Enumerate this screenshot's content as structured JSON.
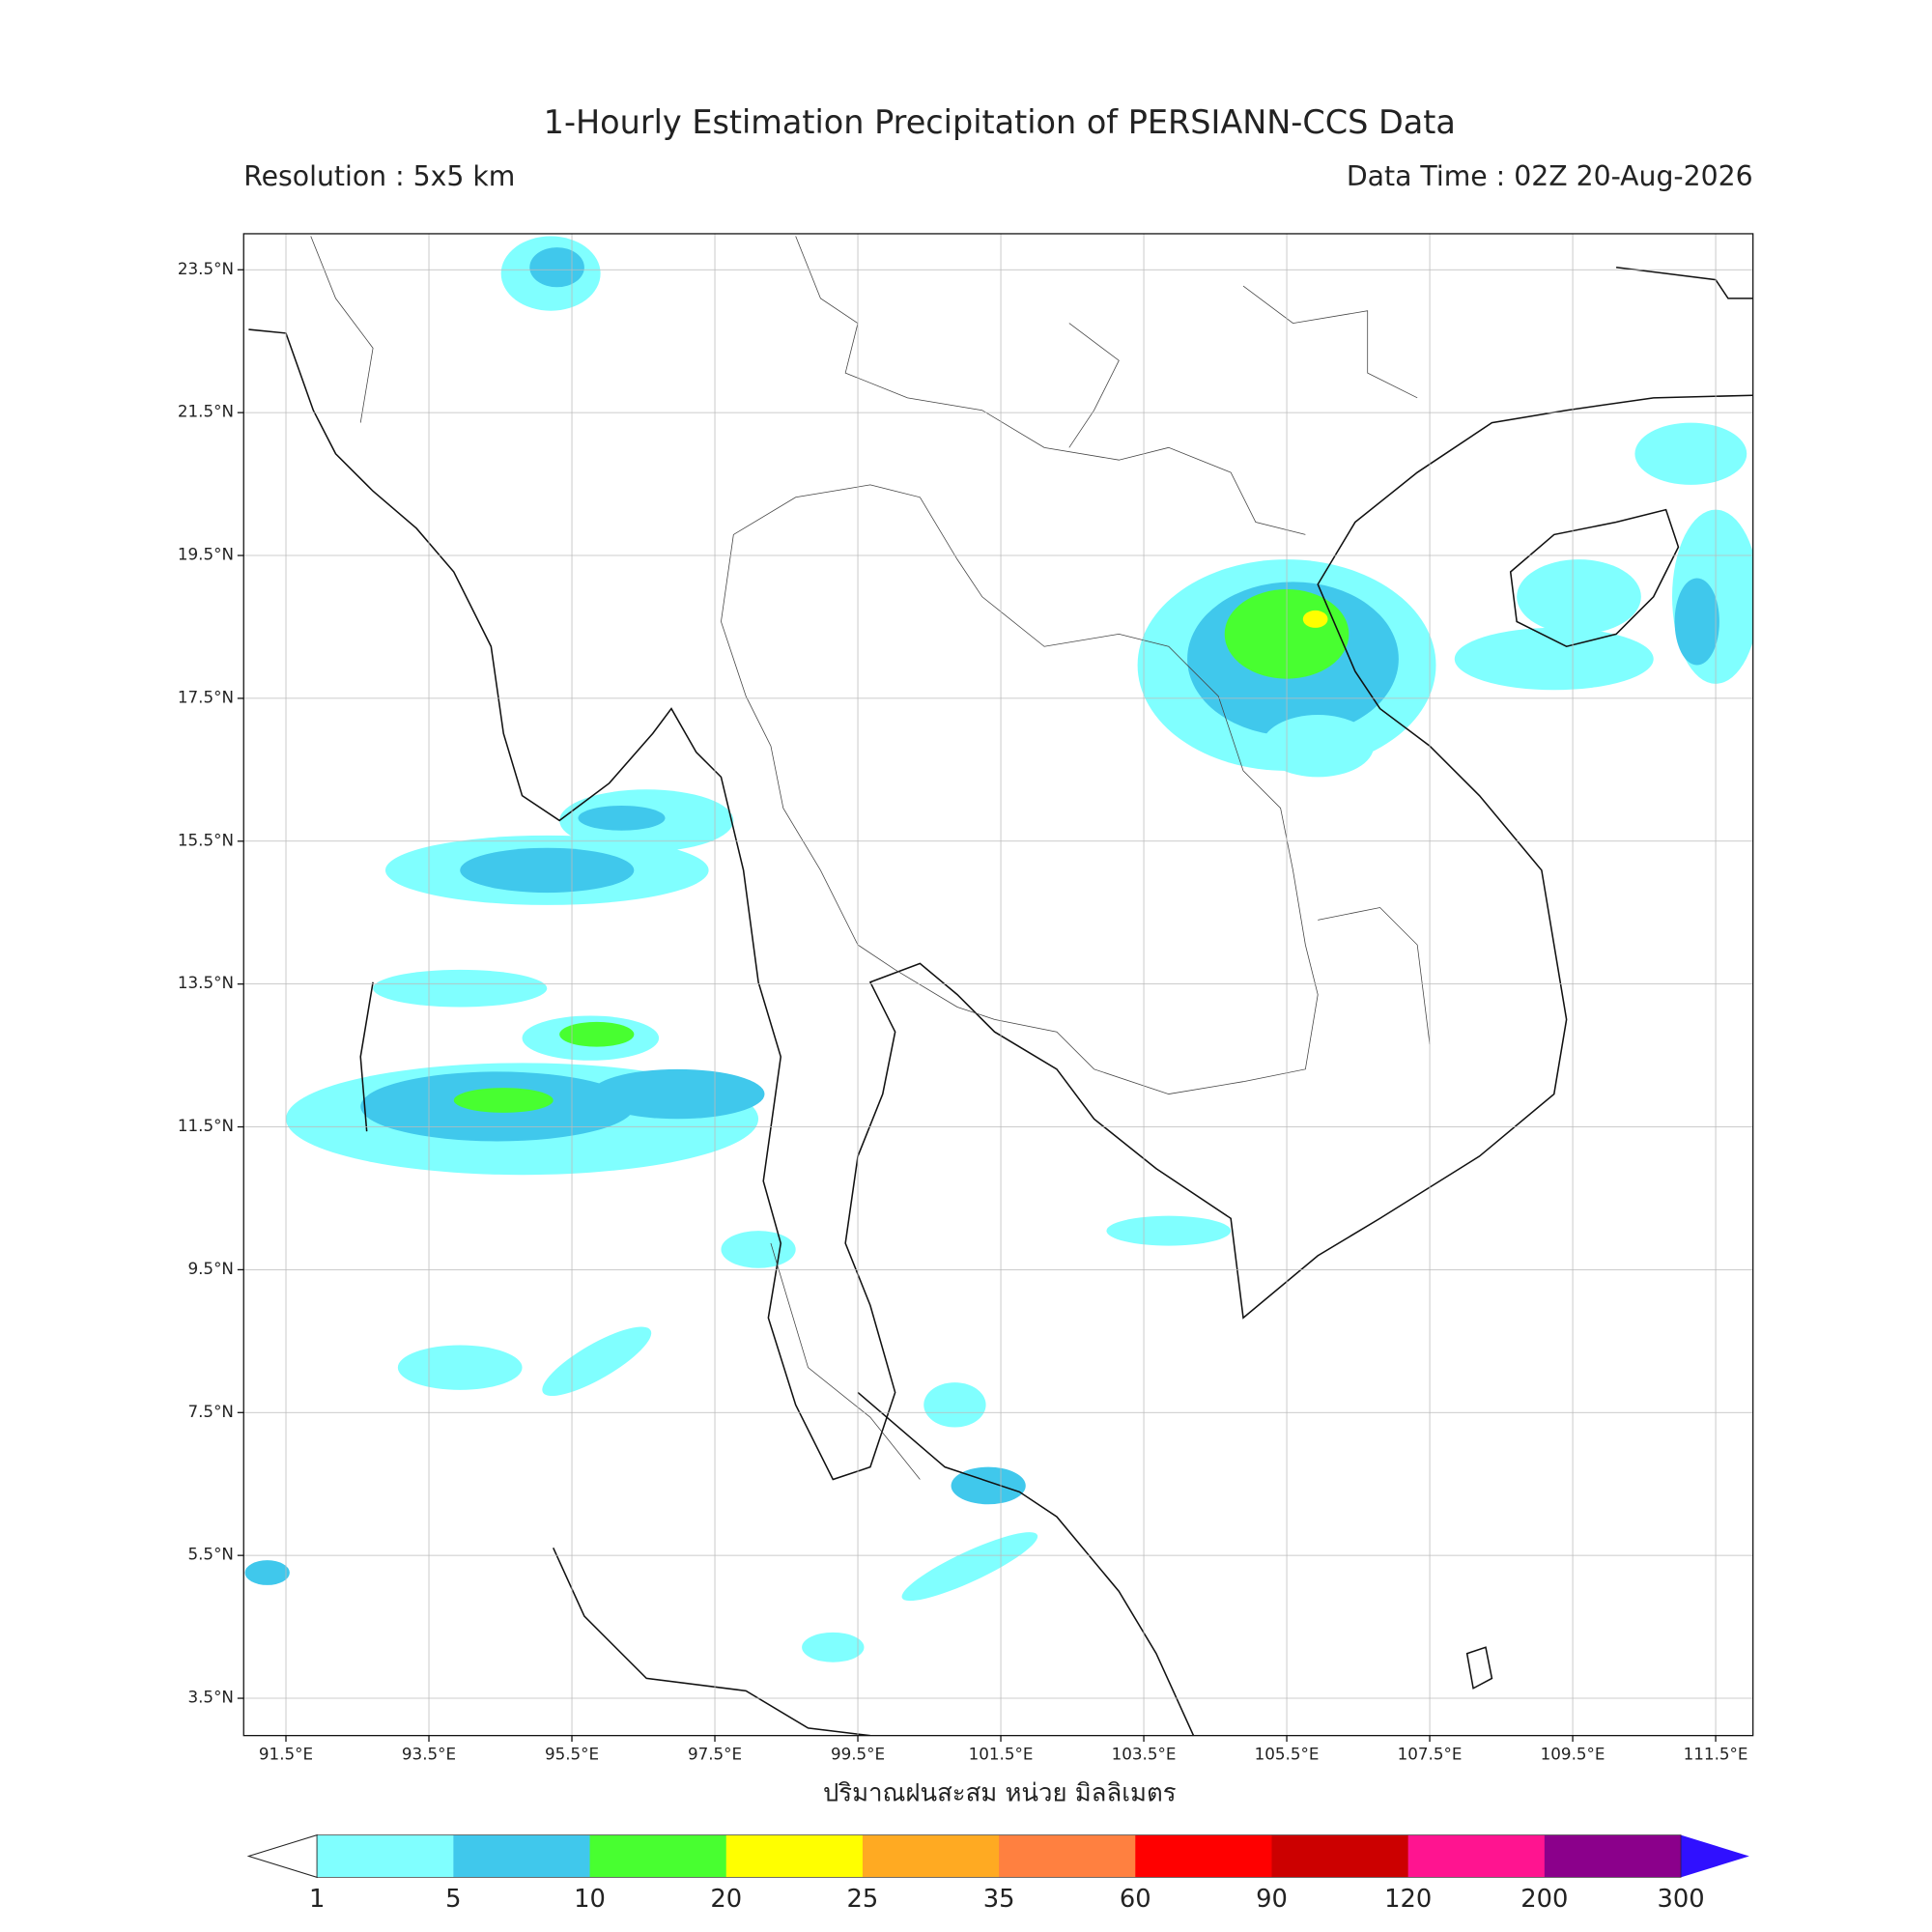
{
  "map": {
    "title": "1-Hourly Estimation Precipitation of PERSIANN-CCS Data",
    "resolution": "Resolution : 5x5 km",
    "data_time": "Data Time : 02Z 20-Aug-2026",
    "lon_labels": [
      "91.5°E",
      "93.5°E",
      "95.5°E",
      "97.5°E",
      "99.5°E",
      "101.5°E",
      "103.5°E",
      "105.5°E",
      "107.5°E",
      "109.5°E",
      "111.5°E"
    ],
    "lat_labels": [
      "23.5°N",
      "21.5°N",
      "19.5°N",
      "17.5°N",
      "15.5°N",
      "13.5°N",
      "11.5°N",
      "9.5°N",
      "7.5°N",
      "5.5°N",
      "3.5°N"
    ],
    "colorbar_label": "ปริมาณฝนสะสม หน่วย มิลลิเมตร",
    "colorbar": {
      "levels": [
        "1",
        "5",
        "10",
        "20",
        "25",
        "35",
        "60",
        "90",
        "120",
        "200",
        "300"
      ],
      "colors": [
        "#80ffff",
        "#40c8ec",
        "#48ff30",
        "#ffff00",
        "#ffaa22",
        "#ff8040",
        "#ff0000",
        "#cc0000",
        "#ff1490",
        "#8b008b"
      ],
      "under_color": "#ffffff",
      "over_color": "#3010ff"
    }
  }
}
